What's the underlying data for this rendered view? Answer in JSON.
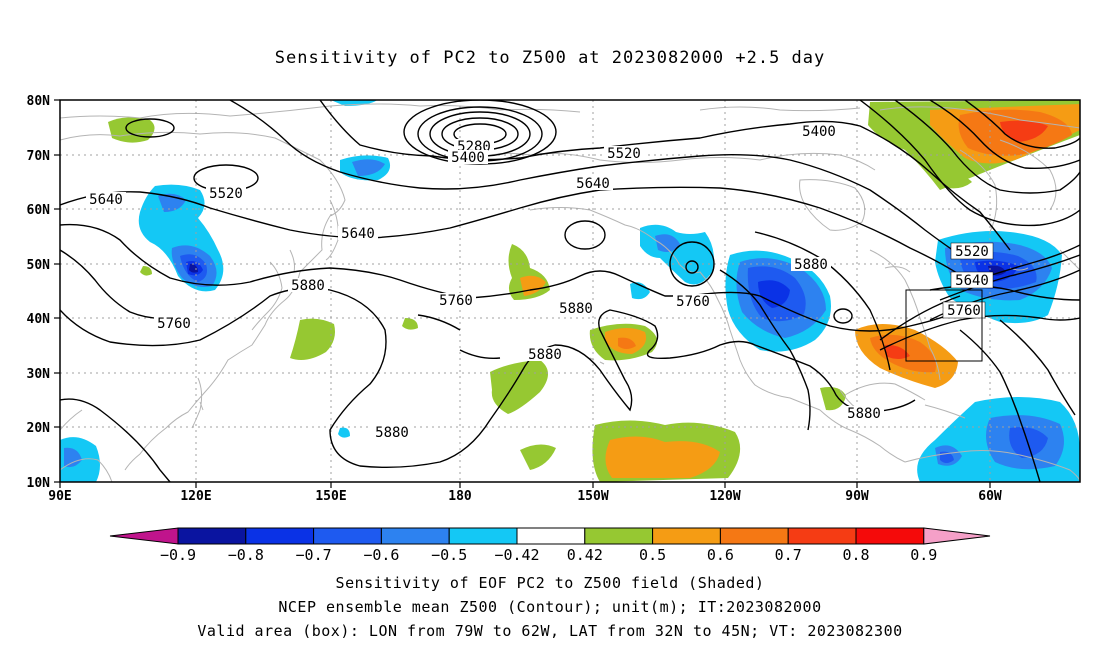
{
  "title": "Sensitivity of PC2 to Z500 at 2023082000 +2.5 day",
  "axes": {
    "lat_labels": [
      "80N",
      "70N",
      "60N",
      "50N",
      "40N",
      "30N",
      "20N",
      "10N"
    ],
    "lon_labels": [
      "90E",
      "120E",
      "150E",
      "180",
      "150W",
      "120W",
      "90W",
      "60W"
    ]
  },
  "contours": {
    "labels": [
      {
        "text": "5280"
      },
      {
        "text": "5400"
      },
      {
        "text": "5400"
      },
      {
        "text": "5520"
      },
      {
        "text": "5520"
      },
      {
        "text": "5520"
      },
      {
        "text": "5640"
      },
      {
        "text": "5640"
      },
      {
        "text": "5640"
      },
      {
        "text": "5640"
      },
      {
        "text": "5760"
      },
      {
        "text": "5760"
      },
      {
        "text": "5760"
      },
      {
        "text": "5760"
      },
      {
        "text": "5880"
      },
      {
        "text": "5880"
      },
      {
        "text": "5880"
      },
      {
        "text": "5880"
      },
      {
        "text": "5880"
      },
      {
        "text": "5880"
      }
    ]
  },
  "valid_box": {
    "lon_from": "79W",
    "lon_to": "62W",
    "lat_from": "32N",
    "lat_to": "45N"
  },
  "colorbar": {
    "ticks": [
      "-0.9",
      "-0.8",
      "-0.7",
      "-0.6",
      "-0.5",
      "-0.42",
      "0.42",
      "0.5",
      "0.6",
      "0.7",
      "0.8",
      "0.9"
    ],
    "colors": [
      "#c0148c",
      "#0a14a0",
      "#0a32e6",
      "#1e5af0",
      "#2d82f0",
      "#14c8f5",
      "#ffffff",
      "#96c832",
      "#f59c14",
      "#f57814",
      "#f53c14",
      "#f50a0a",
      "#f5a0c8"
    ]
  },
  "footer": {
    "line1": "Sensitivity of EOF PC2 to Z500 field (Shaded)",
    "line2": "NCEP ensemble mean Z500 (Contour); unit(m); IT:2023082000",
    "line3": "Valid area (box): LON from 79W to 62W, LAT from 32N to 45N; VT: 2023082300"
  }
}
